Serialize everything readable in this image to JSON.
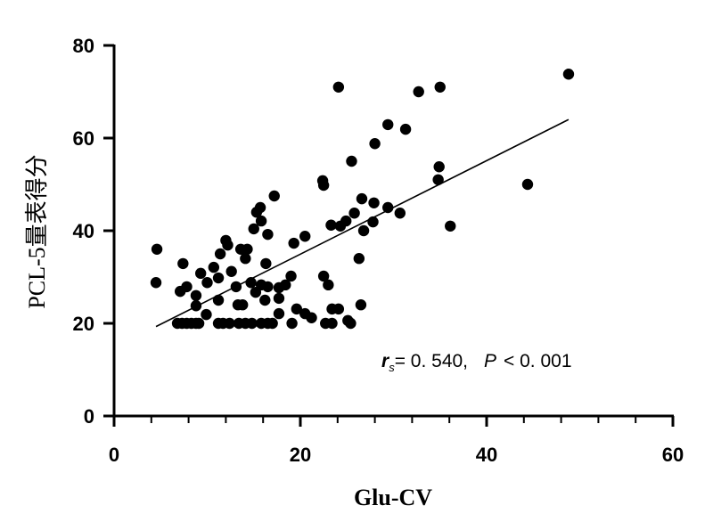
{
  "chart_data": {
    "type": "scatter",
    "title": "",
    "xlabel": "Glu-CV",
    "ylabel": "PCL-5量表得分",
    "xlim": [
      0,
      60
    ],
    "ylim": [
      0,
      80
    ],
    "xticks": [
      "0",
      "20",
      "40",
      "60"
    ],
    "yticks": [
      "0",
      "20",
      "40",
      "60",
      "80"
    ],
    "grid": false,
    "annotation": {
      "r": "r",
      "sub": "s",
      "text": "= 0. 540,",
      "p": "P",
      "ptext": "< 0. 001"
    },
    "trend_line": {
      "x": [
        4.5,
        48.8
      ],
      "y": [
        19.3,
        64
      ]
    },
    "points": [
      [
        4.6,
        36
      ],
      [
        4.5,
        28.8
      ],
      [
        7.4,
        32.9
      ],
      [
        7.1,
        26.9
      ],
      [
        7.8,
        27.9
      ],
      [
        8.8,
        26
      ],
      [
        8.8,
        23.8
      ],
      [
        9.9,
        21.9
      ],
      [
        9.3,
        30.8
      ],
      [
        10,
        28.8
      ],
      [
        10.7,
        32.1
      ],
      [
        11.2,
        29.8
      ],
      [
        12,
        37.9
      ],
      [
        12.2,
        36.9
      ],
      [
        11.4,
        35
      ],
      [
        12.6,
        31.2
      ],
      [
        11.2,
        25
      ],
      [
        13.6,
        36
      ],
      [
        14.3,
        36
      ],
      [
        14.1,
        34
      ],
      [
        13.1,
        27.9
      ],
      [
        13.3,
        24
      ],
      [
        13.8,
        24
      ],
      [
        16.3,
        32.9
      ],
      [
        14.7,
        28.8
      ],
      [
        15.8,
        28.3
      ],
      [
        16.5,
        27.9
      ],
      [
        15.2,
        26.7
      ],
      [
        16.2,
        25
      ],
      [
        15,
        40.4
      ],
      [
        16.5,
        39.2
      ],
      [
        17.7,
        27.7
      ],
      [
        19,
        30.2
      ],
      [
        18.4,
        28.3
      ],
      [
        17.7,
        25.4
      ],
      [
        17.7,
        22.1
      ],
      [
        19.3,
        37.3
      ],
      [
        20.5,
        38.8
      ],
      [
        23.3,
        41.2
      ],
      [
        22.5,
        30.2
      ],
      [
        23,
        28.3
      ],
      [
        26.3,
        34
      ],
      [
        26.5,
        24
      ],
      [
        19.6,
        23.1
      ],
      [
        20.5,
        22.1
      ],
      [
        21.2,
        21.2
      ],
      [
        23.4,
        23.1
      ],
      [
        24.1,
        23.1
      ],
      [
        19.1,
        20
      ],
      [
        22.7,
        20
      ],
      [
        23.4,
        20
      ],
      [
        25.1,
        20.6
      ],
      [
        25.4,
        20
      ],
      [
        6.8,
        20
      ],
      [
        7.3,
        20
      ],
      [
        7.8,
        20
      ],
      [
        8.3,
        20
      ],
      [
        8.8,
        20
      ],
      [
        9.1,
        20
      ],
      [
        11.2,
        20
      ],
      [
        11.7,
        20
      ],
      [
        12.4,
        20
      ],
      [
        13.4,
        20
      ],
      [
        14.1,
        20
      ],
      [
        14.8,
        20
      ],
      [
        15.8,
        20
      ],
      [
        16.5,
        20
      ],
      [
        17.0,
        20
      ],
      [
        17.2,
        47.5
      ],
      [
        15.7,
        45
      ],
      [
        15.3,
        44
      ],
      [
        15.8,
        42.1
      ],
      [
        22.4,
        50.8
      ],
      [
        22.5,
        49.8
      ],
      [
        24.1,
        71
      ],
      [
        25.5,
        55
      ],
      [
        28,
        58.8
      ],
      [
        29.4,
        62.9
      ],
      [
        31.3,
        61.9
      ],
      [
        32.7,
        70
      ],
      [
        35,
        71
      ],
      [
        34.9,
        53.8
      ],
      [
        34.8,
        51
      ],
      [
        44.4,
        50
      ],
      [
        48.8,
        73.8
      ],
      [
        36.1,
        41
      ],
      [
        30.7,
        43.8
      ],
      [
        29.4,
        45
      ],
      [
        27.9,
        46
      ],
      [
        26.6,
        46.9
      ],
      [
        25.8,
        43.8
      ],
      [
        24.9,
        42.1
      ],
      [
        24.3,
        41
      ],
      [
        27.8,
        41.9
      ],
      [
        26.8,
        40
      ]
    ]
  }
}
